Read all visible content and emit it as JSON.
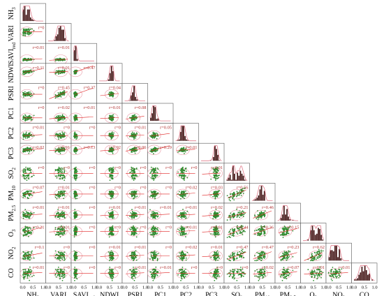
{
  "chart_data": {
    "type": "scatter",
    "title": "",
    "variables": [
      {
        "id": "NH3",
        "base": "NH",
        "sub": "3"
      },
      {
        "id": "VARI",
        "base": "VARI",
        "sub": ""
      },
      {
        "id": "SAVIred",
        "base": "SAVI",
        "sub": "red"
      },
      {
        "id": "NDWI",
        "base": "NDWI",
        "sub": ""
      },
      {
        "id": "PSRI",
        "base": "PSRI",
        "sub": ""
      },
      {
        "id": "PC1",
        "base": "PC1",
        "sub": ""
      },
      {
        "id": "PC2",
        "base": "PC2",
        "sub": ""
      },
      {
        "id": "PC3",
        "base": "PC3",
        "sub": ""
      },
      {
        "id": "SO2",
        "base": "SO",
        "sub": "2"
      },
      {
        "id": "PM10",
        "base": "PM",
        "sub": "10"
      },
      {
        "id": "PM2.5",
        "base": "PM",
        "sub": "2.5"
      },
      {
        "id": "O3",
        "base": "O",
        "sub": "3"
      },
      {
        "id": "NO2",
        "base": "NO",
        "sub": "2"
      },
      {
        "id": "CO",
        "base": "CO",
        "sub": ""
      }
    ],
    "tick_labels": [
      "0.0",
      "0.5",
      "1.0"
    ],
    "xlim": [
      0,
      1
    ],
    "ylim": [
      0,
      1
    ],
    "correlations": [
      [
        "r=0"
      ],
      [
        "r=0.01",
        "r=0.01"
      ],
      [
        "r=0.11",
        "r=0.01",
        "r=0.47"
      ],
      [
        "r=0",
        "r=0.45",
        "r=0.37",
        "r=0.04"
      ],
      [
        "r=0",
        "r=0.02",
        "r=0.01",
        "r=0.01",
        "r=0.08"
      ],
      [
        "r=0.01",
        "r=0",
        "r=0",
        "r=0",
        "r=0.01",
        "r=0.05"
      ],
      [
        "r=0.02",
        "r=0.01",
        "r=0.13",
        "r=0.02",
        "r=0.06",
        "r=0.29",
        "r=0.01"
      ],
      [
        "r=0",
        "r=0",
        "r=0",
        "r=0",
        "r=0",
        "r=0",
        "r=0",
        "r=0.01"
      ],
      [
        "r=0.07",
        "r=0.01",
        "r=0",
        "r=0",
        "r=0",
        "r=0",
        "r=0.02",
        "r=0.03",
        "r=0.56"
      ],
      [
        "r=0.01",
        "r=0.01",
        "r=0",
        "r=0.01",
        "r=0.01",
        "r=0.01",
        "r=0.01",
        "r=0.02",
        "r=0.21",
        "r=0.46"
      ],
      [
        "r=0.21",
        "r=0.01",
        "r=0",
        "r=0",
        "r=0",
        "r=0",
        "r=0.01",
        "r=0.01",
        "r=0.44",
        "r=0.36",
        "r=0.15"
      ],
      [
        "r=0.1",
        "r=0",
        "r=0",
        "r=0.01",
        "r=0.01",
        "r=0",
        "r=0.02",
        "r=0.01",
        "r=0.47",
        "r=0.47",
        "r=0.23",
        "r=0.62"
      ],
      [
        "r=0.01",
        "r=0",
        "r=0",
        "r=0",
        "r=0.01",
        "r=0.01",
        "r=0",
        "r=0",
        "r=0",
        "r=0.02",
        "r=0.07",
        "r=0.01",
        "r=0.01"
      ]
    ],
    "colors": {
      "point": "#2e8b2e",
      "hist_bar": "#4a1e1e",
      "density": "#e07a8a",
      "ellipse": "#e89aa6",
      "fit_line": "#e02020",
      "r_text": "#b03030"
    }
  }
}
